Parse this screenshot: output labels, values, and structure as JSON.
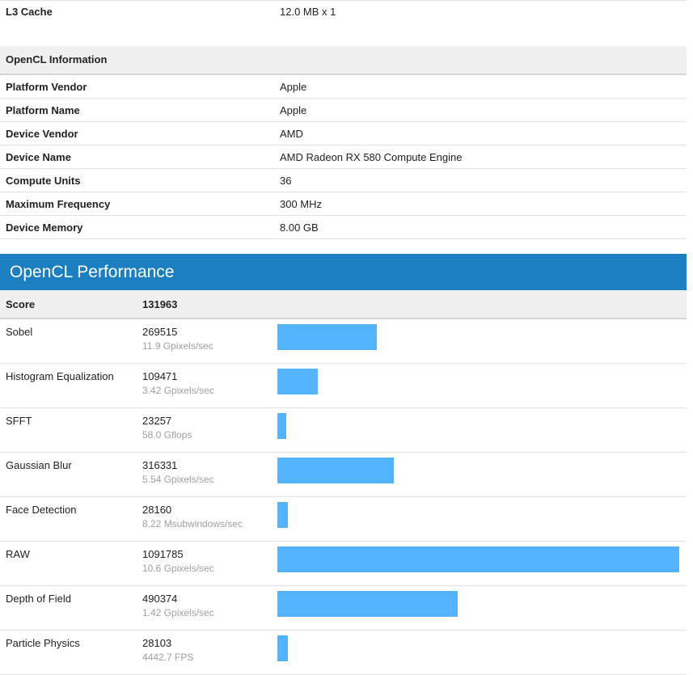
{
  "system": {
    "l3": {
      "label": "L3 Cache",
      "value": "12.0 MB x 1"
    }
  },
  "opencl_info": {
    "title": "OpenCL Information",
    "rows": [
      {
        "label": "Platform Vendor",
        "value": "Apple"
      },
      {
        "label": "Platform Name",
        "value": "Apple"
      },
      {
        "label": "Device Vendor",
        "value": "AMD"
      },
      {
        "label": "Device Name",
        "value": "AMD Radeon RX 580 Compute Engine"
      },
      {
        "label": "Compute Units",
        "value": "36"
      },
      {
        "label": "Maximum Frequency",
        "value": "300 MHz"
      },
      {
        "label": "Device Memory",
        "value": "8.00 GB"
      }
    ]
  },
  "performance": {
    "title": "OpenCL Performance",
    "score_label": "Score",
    "score_value": "131963",
    "max_value": 1091785,
    "bar_color": "#54b4fb",
    "banner_color": "#1b7fc1",
    "rows": [
      {
        "name": "Sobel",
        "score": "269515",
        "detail": "11.9 Gpixels/sec",
        "value": 269515
      },
      {
        "name": "Histogram Equalization",
        "score": "109471",
        "detail": "3.42 Gpixels/sec",
        "value": 109471
      },
      {
        "name": "SFFT",
        "score": "23257",
        "detail": "58.0 Gflops",
        "value": 23257
      },
      {
        "name": "Gaussian Blur",
        "score": "316331",
        "detail": "5.54 Gpixels/sec",
        "value": 316331
      },
      {
        "name": "Face Detection",
        "score": "28160",
        "detail": "8.22 Msubwindows/sec",
        "value": 28160
      },
      {
        "name": "RAW",
        "score": "1091785",
        "detail": "10.6 Gpixels/sec",
        "value": 1091785
      },
      {
        "name": "Depth of Field",
        "score": "490374",
        "detail": "1.42 Gpixels/sec",
        "value": 490374
      },
      {
        "name": "Particle Physics",
        "score": "28103",
        "detail": "4442.7 FPS",
        "value": 28103
      }
    ]
  }
}
